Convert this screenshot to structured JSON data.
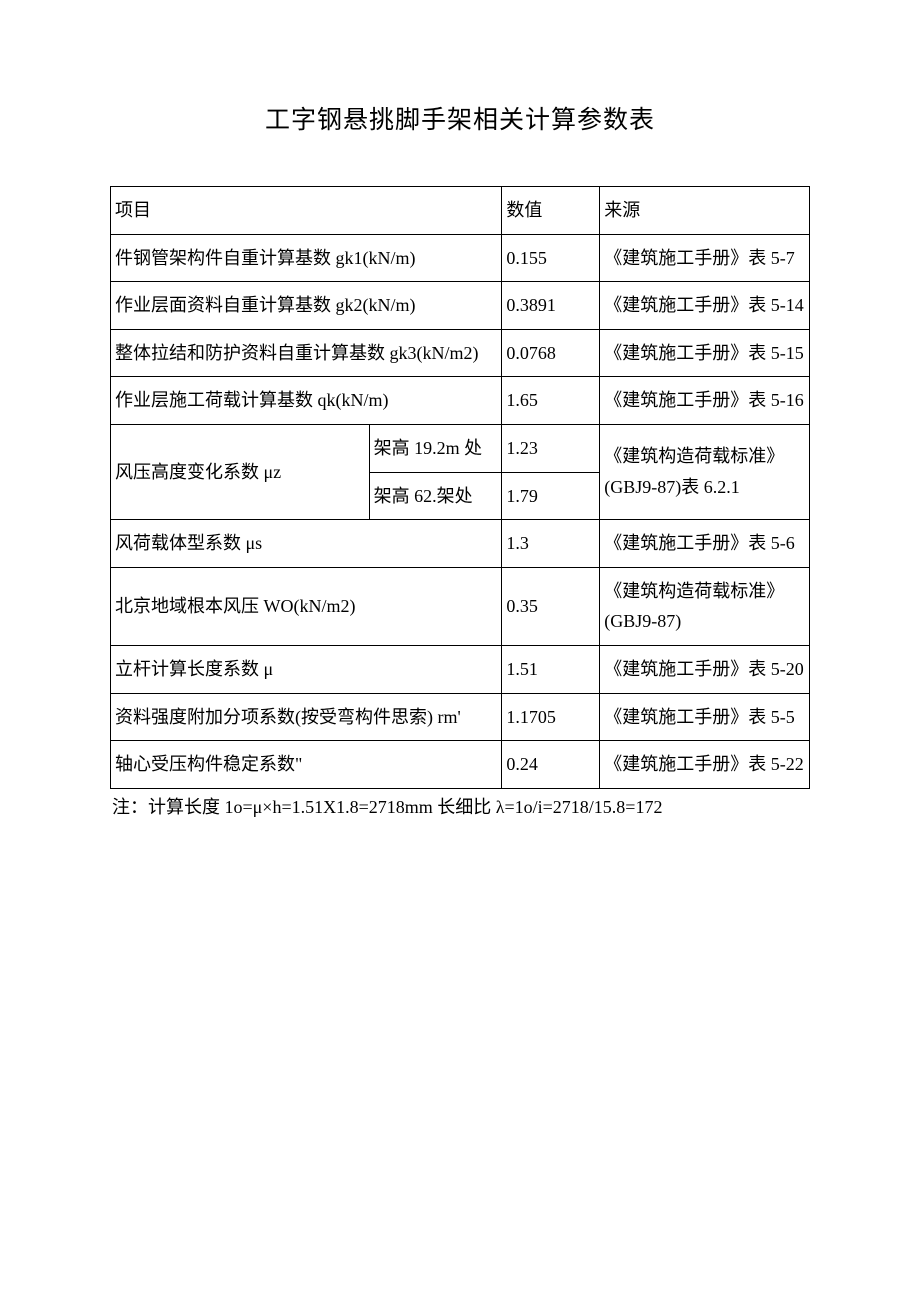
{
  "title": "工字钢悬挑脚手架相关计算参数表",
  "headers": {
    "item": "项目",
    "value": "数值",
    "source": "来源"
  },
  "rows": {
    "r1": {
      "item": "件钢管架构件自重计算基数 gk1(kN/m)",
      "value": "0.155",
      "source": "《建筑施工手册》表 5-7"
    },
    "r2": {
      "item": "作业层面资料自重计算基数 gk2(kN/m)",
      "value": "0.3891",
      "source": "《建筑施工手册》表 5-14"
    },
    "r3": {
      "item": "整体拉结和防护资料自重计算基数 gk3(kN/m2)",
      "value": "0.0768",
      "source": "《建筑施工手册》表 5-15"
    },
    "r4": {
      "item": "作业层施工荷载计算基数 qk(kN/m)",
      "value": "1.65",
      "source": "《建筑施工手册》表 5-16"
    },
    "r5": {
      "item": "风压高度变化系数 μz",
      "sub1": "架高 19.2m 处",
      "sub2": "架高 62.架处",
      "value1": "1.23",
      "value2": "1.79",
      "source": "《建筑构造荷载标准》(GBJ9-87)表 6.2.1"
    },
    "r6": {
      "item": "风荷载体型系数 μs",
      "value": "1.3",
      "source": "《建筑施工手册》表 5-6"
    },
    "r7": {
      "item": "北京地域根本风压 WO(kN/m2)",
      "value": "0.35",
      "source": "《建筑构造荷载标准》(GBJ9-87)"
    },
    "r8": {
      "item": "立杆计算长度系数 μ",
      "value": "1.51",
      "source": "《建筑施工手册》表 5-20"
    },
    "r9": {
      "item": "资料强度附加分项系数(按受弯构件思索) rm'",
      "value": "1.1705",
      "source": "《建筑施工手册》表 5-5"
    },
    "r10": {
      "item": "轴心受压构件稳定系数\"",
      "value": "0.24",
      "source": "《建筑施工手册》表 5-22"
    }
  },
  "footnote": "注：计算长度 1o=μ×h=1.51X1.8=2718mm 长细比 λ=1o/i=2718/15.8=172",
  "colors": {
    "background": "#ffffff",
    "text": "#000000",
    "border": "#000000"
  }
}
